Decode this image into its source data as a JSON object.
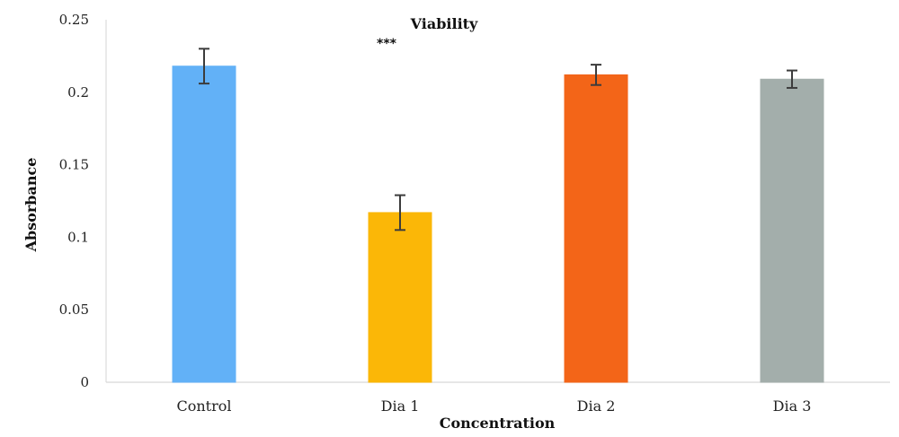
{
  "chart_data": {
    "type": "bar",
    "title": "Viability",
    "xlabel": "Concentration",
    "ylabel": "Absorbance",
    "categories": [
      "Control",
      "Dia 1",
      "Dia 2",
      "Dia 3"
    ],
    "values": [
      0.218,
      0.117,
      0.212,
      0.209
    ],
    "errors": [
      0.012,
      0.012,
      0.007,
      0.006
    ],
    "colors": [
      "#62b1f7",
      "#fbb707",
      "#f36518",
      "#a3aeab"
    ],
    "ylim": [
      0,
      0.25
    ],
    "yticks": [
      0,
      0.05,
      0.1,
      0.15,
      0.2,
      0.25
    ],
    "ytick_labels": [
      "0",
      "0.05",
      "0.1",
      "0.15",
      "0.2",
      "0.25"
    ],
    "annotations": [
      {
        "text": "***",
        "category": "Dia 1"
      }
    ],
    "grid": false,
    "legend": "none"
  }
}
